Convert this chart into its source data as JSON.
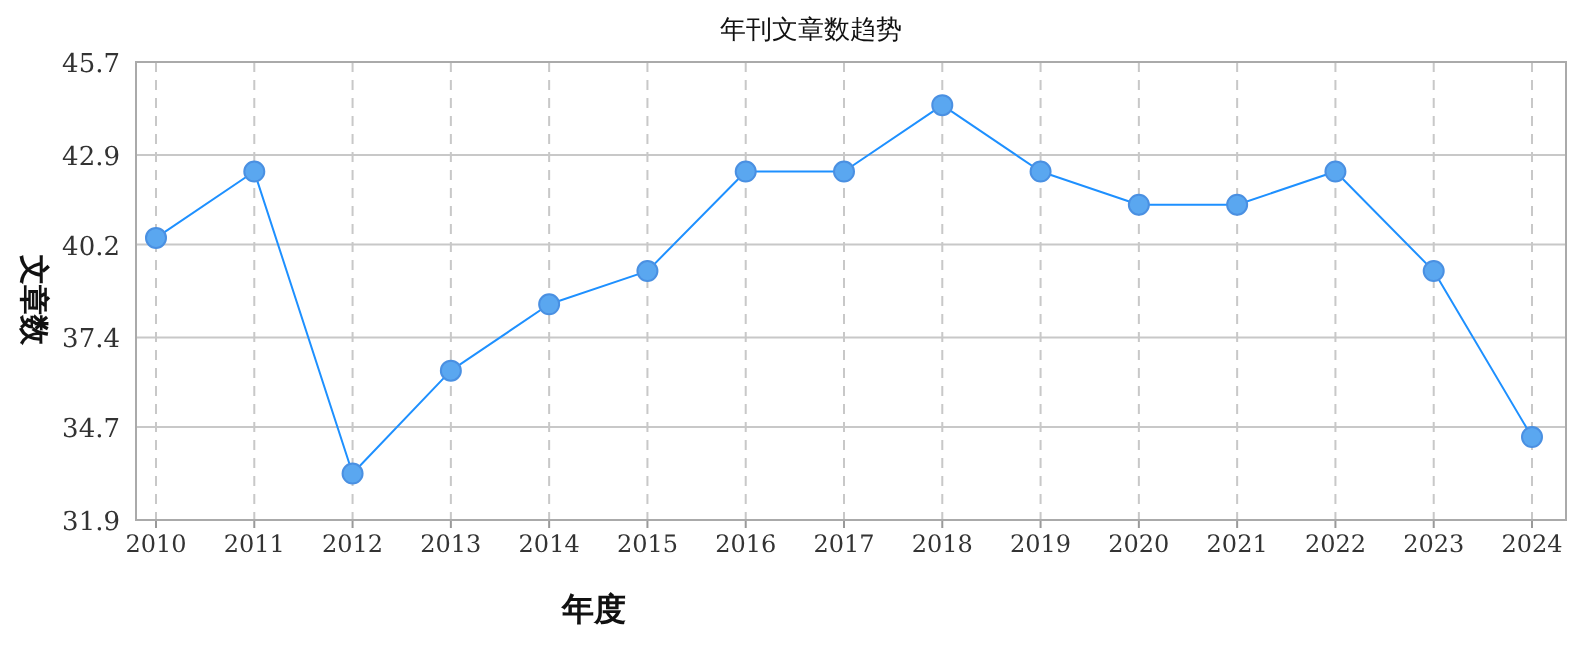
{
  "chart_data": {
    "type": "line",
    "title": "年刊文章数趋势",
    "xlabel": "年度",
    "ylabel": "文章数",
    "categories": [
      "2010",
      "2011",
      "2012",
      "2013",
      "2014",
      "2015",
      "2016",
      "2017",
      "2018",
      "2019",
      "2020",
      "2021",
      "2022",
      "2023",
      "2024"
    ],
    "values": [
      40.4,
      42.4,
      33.3,
      36.4,
      38.4,
      39.4,
      42.4,
      42.4,
      44.4,
      42.4,
      41.4,
      41.4,
      42.4,
      39.4,
      34.4
    ],
    "color": "#1e90ff",
    "ylim": [
      31.9,
      45.7
    ],
    "yticks": [
      31.9,
      34.7,
      37.4,
      40.2,
      42.9,
      45.7
    ],
    "grid": true,
    "marker": "circle",
    "line_style": "solid"
  }
}
